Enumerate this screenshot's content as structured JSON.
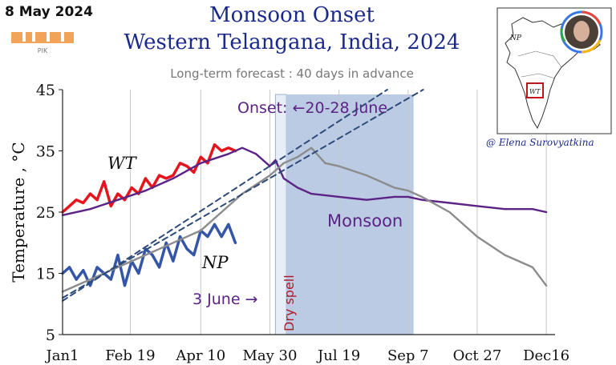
{
  "header": {
    "date": "8 May 2024",
    "title_line1": "Monsoon Onset",
    "title_line2": "Western Telangana, India, 2024",
    "subtitle": "Long-term forecast : 40 days in advance",
    "logo_text": "PIK",
    "credit": "@ Elena Surovyatkina"
  },
  "map": {
    "label_np": "NP",
    "label_wt": "WT"
  },
  "colors": {
    "wt_observed": "#e8141c",
    "np_observed": "#3556a8",
    "forecast_wt": "#5b2385",
    "forecast_np": "#8c8c8c",
    "monsoon_band": "#bccbe4",
    "dry_spell_band": "#e8eef8",
    "trend_line": "#2d4a7a",
    "title": "#1a2a8c"
  },
  "chart_data": {
    "type": "line",
    "title": "Monsoon Onset Western Telangana, India, 2024",
    "ylabel": "Temperature , °C",
    "xlabel": "",
    "ylim": [
      5,
      45
    ],
    "xlim": [
      1,
      355
    ],
    "y_ticks": [
      45,
      35,
      25,
      15,
      5
    ],
    "x_ticks": [
      {
        "label": "Jan1",
        "day": 1
      },
      {
        "label": "Feb 19",
        "day": 50
      },
      {
        "label": "Apr 10",
        "day": 101
      },
      {
        "label": "May 30",
        "day": 151
      },
      {
        "label": "Jul 19",
        "day": 201
      },
      {
        "label": "Sep 7",
        "day": 251
      },
      {
        "label": "Oct 27",
        "day": 301
      },
      {
        "label": "Dec16",
        "day": 351
      }
    ],
    "grid": "vertical",
    "annotations": {
      "onset": "Onset: ←20-28 June",
      "monsoon": "Monsoon",
      "dry_spell": "Dry spell",
      "june3": "3 June →",
      "wt_label": "WT",
      "np_label": "NP"
    },
    "bands": [
      {
        "name": "Dry spell",
        "x": [
          155,
          163
        ]
      },
      {
        "name": "Monsoon",
        "x": [
          163,
          255
        ]
      }
    ],
    "series": [
      {
        "name": "WT",
        "style": "observed",
        "x": [
          1,
          6,
          11,
          16,
          21,
          26,
          31,
          36,
          41,
          46,
          51,
          56,
          61,
          66,
          71,
          76,
          81,
          86,
          91,
          96,
          101,
          106,
          111,
          116,
          121,
          126
        ],
        "y": [
          25,
          26,
          27,
          26.5,
          28,
          27,
          30,
          26,
          28,
          27,
          29,
          28,
          30.5,
          29,
          31,
          30.5,
          31,
          33,
          32.5,
          31.5,
          34,
          33,
          36,
          35,
          35.5,
          35
        ]
      },
      {
        "name": "NP",
        "style": "observed",
        "x": [
          1,
          6,
          11,
          16,
          21,
          26,
          31,
          36,
          41,
          46,
          51,
          56,
          61,
          66,
          71,
          76,
          81,
          86,
          91,
          96,
          101,
          106,
          111,
          116,
          121,
          126
        ],
        "y": [
          15,
          16,
          14,
          15.5,
          13,
          16,
          15,
          14,
          18,
          13,
          17,
          15,
          19,
          18,
          16,
          20,
          17,
          21,
          19,
          18,
          22,
          21,
          23,
          21,
          23,
          20
        ]
      },
      {
        "name": "WT forecast",
        "style": "forecast",
        "x": [
          1,
          21,
          41,
          61,
          81,
          101,
          121,
          131,
          141,
          151,
          155,
          161,
          171,
          181,
          201,
          221,
          241,
          251,
          261,
          281,
          301,
          321,
          341,
          351
        ],
        "y": [
          24.5,
          25.5,
          27,
          28.5,
          30.5,
          33,
          34.5,
          35.5,
          34.5,
          32.5,
          33.5,
          30.5,
          29,
          28,
          27.5,
          27,
          27.5,
          27.5,
          27,
          26.5,
          26,
          25.5,
          25.5,
          25
        ]
      },
      {
        "name": "NP forecast",
        "style": "forecast",
        "x": [
          1,
          21,
          41,
          61,
          81,
          101,
          121,
          131,
          141,
          151,
          161,
          171,
          181,
          191,
          201,
          221,
          241,
          251,
          261,
          281,
          301,
          321,
          341,
          351
        ],
        "y": [
          12,
          14,
          16,
          18,
          20,
          22,
          26,
          28,
          29.5,
          31,
          33,
          34,
          35.5,
          33,
          32.5,
          31,
          29,
          28.5,
          27.5,
          25,
          21,
          18,
          16,
          13
        ]
      },
      {
        "name": "trend NP-WT",
        "style": "trend",
        "x": [
          1,
          262
        ],
        "y": [
          11,
          45
        ]
      },
      {
        "name": "trend WT",
        "style": "trend",
        "x": [
          1,
          236
        ],
        "y": [
          10.5,
          45
        ]
      }
    ]
  }
}
